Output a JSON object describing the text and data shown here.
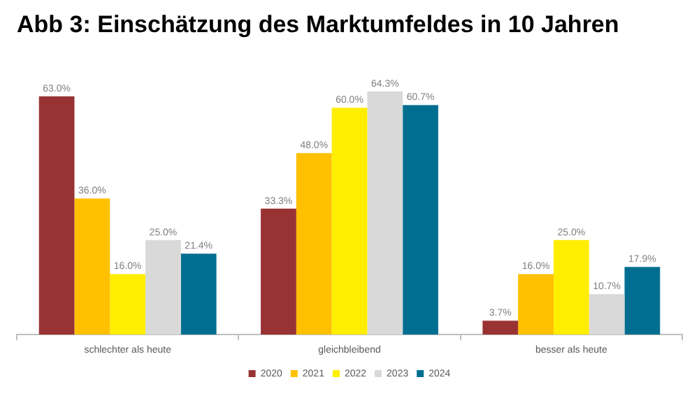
{
  "chart_data": {
    "type": "bar",
    "title": "Abb 3: Einschätzung des Marktumfeldes in 10 Jahren",
    "categories": [
      "schlechter als heute",
      "gleichbleibend",
      "besser als heute"
    ],
    "series": [
      {
        "name": "2020",
        "color": "#993333",
        "values": [
          63.0,
          33.3,
          3.7
        ],
        "value_labels": [
          "63.0%",
          "33.3%",
          "3.7%"
        ]
      },
      {
        "name": "2021",
        "color": "#ffc000",
        "values": [
          36.0,
          48.0,
          16.0
        ],
        "value_labels": [
          "36.0%",
          "48.0%",
          "16.0%"
        ]
      },
      {
        "name": "2022",
        "color": "#ffee00",
        "values": [
          16.0,
          60.0,
          25.0
        ],
        "value_labels": [
          "16.0%",
          "60.0%",
          "25.0%"
        ]
      },
      {
        "name": "2023",
        "color": "#d9d9d9",
        "values": [
          25.0,
          64.3,
          10.7
        ],
        "value_labels": [
          "25.0%",
          "64.3%",
          "10.7%"
        ]
      },
      {
        "name": "2024",
        "color": "#006e91",
        "values": [
          21.4,
          60.7,
          17.9
        ],
        "value_labels": [
          "21.4%",
          "60.7%",
          "17.9%"
        ]
      }
    ],
    "legend": "bottom",
    "grid": false
  }
}
